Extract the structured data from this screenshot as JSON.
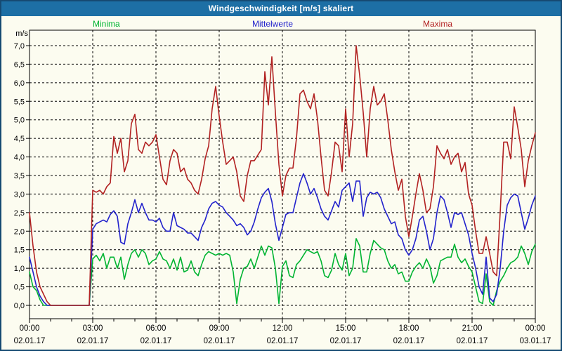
{
  "window": {
    "title": "Windgeschwindigkeit [m/s] skaliert"
  },
  "legend": [
    {
      "label": "Minima",
      "color": "#00b432"
    },
    {
      "label": "Mittelwerte",
      "color": "#2222cc"
    },
    {
      "label": "Maxima",
      "color": "#b22222"
    }
  ],
  "axes": {
    "y_unit": "m/s",
    "y_ticks": [
      "0,0",
      "0,5",
      "1,0",
      "1,5",
      "2,0",
      "2,5",
      "3,0",
      "3,5",
      "4,0",
      "4,5",
      "5,0",
      "5,5",
      "6,0",
      "6,5",
      "7,0"
    ],
    "x_major": [
      {
        "time": "00:00",
        "date": "02.01.17"
      },
      {
        "time": "03:00",
        "date": "02.01.17"
      },
      {
        "time": "06:00",
        "date": "02.01.17"
      },
      {
        "time": "09:00",
        "date": "02.01.17"
      },
      {
        "time": "12:00",
        "date": "02.01.17"
      },
      {
        "time": "15:00",
        "date": "02.01.17"
      },
      {
        "time": "18:00",
        "date": "02.01.17"
      },
      {
        "time": "21:00",
        "date": "02.01.17"
      },
      {
        "time": "00:00",
        "date": "03.01.17"
      }
    ]
  },
  "chart_data": {
    "type": "line",
    "title": "Windgeschwindigkeit [m/s] skaliert",
    "ylabel": "m/s",
    "ylim": [
      0,
      7
    ],
    "y_tick_step": 0.5,
    "x_start": "00:00 02.01.17",
    "x_end": "00:00 03.01.17",
    "x_step_minutes": 10,
    "x_major_tick_hours": 3,
    "x_minor_tick_hours": 1,
    "grid": "dashed black, horizontal every 0.5 m/s, vertical every 3 h",
    "legend_position": "top",
    "series": [
      {
        "name": "Minima",
        "color": "#00b432",
        "values": [
          0.9,
          0.5,
          0.4,
          0.15,
          0,
          0,
          0,
          0,
          0,
          0,
          0,
          0,
          0,
          0,
          0,
          0,
          0,
          0,
          1.25,
          1.35,
          1.2,
          1.4,
          1.0,
          1.3,
          1.3,
          1.0,
          1.3,
          0.7,
          1.1,
          1.4,
          1.5,
          1.3,
          1.5,
          1.4,
          1.1,
          1.2,
          1.25,
          1.45,
          1.25,
          1.2,
          1.0,
          1.25,
          0.95,
          1.3,
          0.9,
          0.95,
          1.2,
          0.9,
          0.8,
          1.1,
          1.35,
          1.45,
          1.4,
          1.35,
          1.4,
          1.35,
          1.4,
          1.35,
          0.9,
          0.05,
          0.7,
          1.0,
          1.05,
          1.25,
          1.0,
          1.3,
          1.6,
          1.35,
          1.6,
          1.55,
          1.0,
          0.05,
          1.05,
          1.2,
          0.8,
          0.75,
          1.1,
          1.2,
          1.35,
          1.5,
          1.45,
          1.4,
          1.45,
          1.2,
          0.8,
          0.75,
          0.95,
          1.4,
          1.1,
          0.95,
          1.4,
          0.8,
          1.0,
          1.8,
          1.6,
          0.9,
          0.9,
          1.4,
          1.75,
          1.65,
          1.55,
          1.5,
          1.2,
          1.0,
          1.1,
          0.85,
          0.9,
          0.65,
          0.65,
          0.9,
          1.05,
          1.15,
          1.0,
          1.25,
          1.05,
          0.6,
          0.8,
          1.2,
          1.25,
          1.3,
          1.3,
          1.65,
          1.3,
          1.15,
          1.25,
          1.05,
          0.9,
          0.5,
          0.1,
          0.05,
          0.85,
          0.1,
          0,
          0.4,
          0.65,
          0.8,
          1.0,
          1.15,
          1.2,
          1.3,
          1.6,
          1.4,
          1.1,
          1.45,
          1.65
        ]
      },
      {
        "name": "Mittelwerte",
        "color": "#2222cc",
        "values": [
          1.3,
          0.9,
          0.5,
          0.25,
          0.1,
          0,
          0,
          0,
          0,
          0,
          0,
          0,
          0,
          0,
          0,
          0,
          0,
          0,
          2.05,
          2.2,
          2.25,
          2.3,
          2.25,
          2.45,
          2.55,
          2.4,
          1.7,
          1.65,
          2.2,
          2.5,
          2.85,
          2.5,
          2.75,
          2.5,
          2.3,
          2.3,
          2.25,
          2.35,
          2.1,
          2.0,
          2.0,
          2.5,
          2.15,
          2.1,
          2.05,
          1.95,
          1.95,
          1.85,
          1.75,
          2.1,
          2.3,
          2.6,
          2.75,
          2.8,
          2.7,
          2.65,
          2.5,
          2.4,
          2.3,
          2.15,
          2.2,
          2.1,
          1.9,
          2.0,
          2.25,
          2.6,
          2.9,
          3.05,
          3.15,
          2.8,
          2.2,
          1.75,
          2.1,
          2.45,
          2.5,
          2.5,
          2.9,
          3.3,
          3.55,
          3.3,
          3.0,
          3.15,
          2.9,
          2.6,
          2.4,
          2.3,
          2.55,
          2.8,
          2.65,
          3.1,
          3.2,
          3.3,
          2.8,
          3.35,
          3.35,
          2.4,
          2.9,
          3.05,
          3.0,
          3.05,
          2.9,
          2.6,
          2.4,
          2.2,
          2.25,
          1.9,
          1.8,
          1.5,
          1.35,
          1.5,
          1.8,
          2.3,
          2.4,
          2.0,
          1.5,
          1.8,
          2.5,
          2.95,
          2.85,
          2.5,
          2.1,
          2.5,
          2.45,
          2.5,
          2.2,
          1.9,
          1.4,
          1.0,
          0.5,
          0.3,
          1.3,
          0.2,
          0.1,
          0.3,
          1.0,
          2.0,
          2.7,
          2.9,
          3.0,
          2.95,
          2.5,
          2.05,
          2.35,
          2.7,
          2.95
        ]
      },
      {
        "name": "Maxima",
        "color": "#b22222",
        "values": [
          2.5,
          1.6,
          0.9,
          0.5,
          0.3,
          0.1,
          0,
          0,
          0,
          0,
          0,
          0,
          0,
          0,
          0,
          0,
          0,
          0,
          3.1,
          3.05,
          3.1,
          3.0,
          3.2,
          3.3,
          4.55,
          4.1,
          4.5,
          3.6,
          3.9,
          4.9,
          5.15,
          4.2,
          4.1,
          4.4,
          4.3,
          4.4,
          4.6,
          4.0,
          3.4,
          3.25,
          3.9,
          4.2,
          4.1,
          3.6,
          3.7,
          3.4,
          3.3,
          3.1,
          3.0,
          3.4,
          3.95,
          4.3,
          5.3,
          5.9,
          5.1,
          4.4,
          3.8,
          3.9,
          4.0,
          3.6,
          2.95,
          2.8,
          3.5,
          3.9,
          3.9,
          4.05,
          4.2,
          6.3,
          5.4,
          6.7,
          5.2,
          3.8,
          2.95,
          3.5,
          3.7,
          3.7,
          4.5,
          5.7,
          5.8,
          5.5,
          5.3,
          5.7,
          5.0,
          4.0,
          3.1,
          2.95,
          3.6,
          4.4,
          4.3,
          3.6,
          5.3,
          4.0,
          4.9,
          7.0,
          6.2,
          5.2,
          4.0,
          5.3,
          5.9,
          5.4,
          5.5,
          5.7,
          5.0,
          4.2,
          3.6,
          3.1,
          3.4,
          2.4,
          1.85,
          2.4,
          3.0,
          3.55,
          3.1,
          2.5,
          2.6,
          3.2,
          4.3,
          4.1,
          3.95,
          4.2,
          3.8,
          4.0,
          4.1,
          3.6,
          3.85,
          3.0,
          2.7,
          2.0,
          1.4,
          1.4,
          1.85,
          1.4,
          0.9,
          0.8,
          2.5,
          4.4,
          4.4,
          3.95,
          5.35,
          4.8,
          4.2,
          3.2,
          3.9,
          4.3,
          4.65
        ]
      }
    ]
  },
  "colors": {
    "titlebar_bg": "#1d6fa5",
    "titlebar_text": "#ffffff",
    "window_border": "#164a72",
    "background": "#fcfcf0",
    "grid": "#000000"
  }
}
